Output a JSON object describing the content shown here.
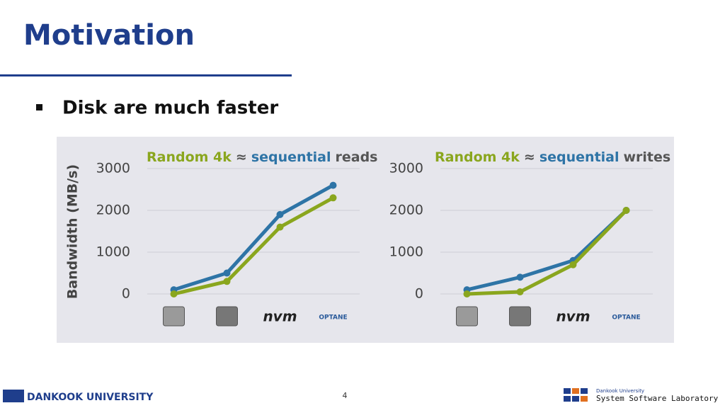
{
  "slide": {
    "title": "Motivation",
    "bullet": "Disk are much faster",
    "page_number": "4",
    "footer_left": "DANKOOK UNIVERSITY",
    "footer_right_top": "Dankook University",
    "footer_right_bottom": "System Software Laboratory"
  },
  "chart_data": [
    {
      "type": "line",
      "title_sep": "≈",
      "title_suffix": "reads",
      "y_label": "Bandwidth (MB/s)",
      "categories": [
        null,
        null,
        "nvm",
        "OPTANE"
      ],
      "series": [
        {
          "name": "sequential",
          "color": "#2e74a6",
          "values": [
            100,
            500,
            1900,
            2600
          ]
        },
        {
          "name": "Random 4k",
          "color": "#8aa61e",
          "values": [
            0,
            300,
            1600,
            2300
          ]
        }
      ],
      "ylim": [
        0,
        3000
      ],
      "yticks": [
        0,
        1000,
        2000,
        3000
      ],
      "grid": true
    },
    {
      "type": "line",
      "title_sep": "≈",
      "title_suffix": "writes",
      "categories": [
        null,
        null,
        "nvm",
        "OPTANE"
      ],
      "series": [
        {
          "name": "sequential",
          "color": "#2e74a6",
          "values": [
            100,
            400,
            800,
            2000
          ]
        },
        {
          "name": "Random 4k",
          "color": "#8aa61e",
          "values": [
            0,
            50,
            700,
            2000
          ]
        }
      ],
      "ylim": [
        0,
        3000
      ],
      "yticks": [
        0,
        1000,
        2000,
        3000
      ],
      "grid": true
    }
  ]
}
